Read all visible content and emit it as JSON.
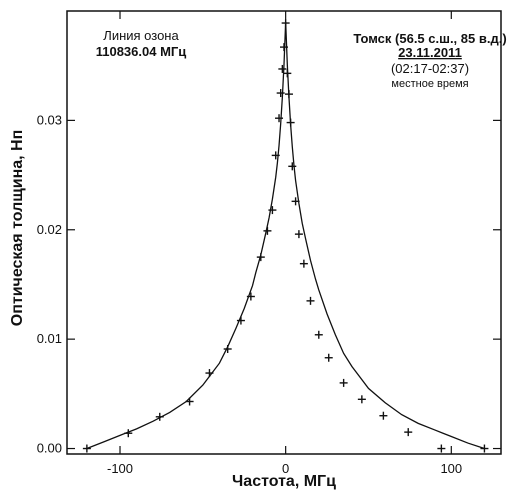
{
  "chart_data": {
    "type": "line",
    "annotations": {
      "left_line1": "Линия озона",
      "left_line2": "110836.04 МГц",
      "right_line1": "Томск (56.5 с.ш., 85 в.д.)",
      "right_line2": "23.11.2011",
      "right_line3": "(02:17-02:37)",
      "right_line4": "местное время"
    },
    "xlabel": "Частота, МГц",
    "ylabel": "Оптическая толщина, Нп",
    "xlim": [
      -132,
      130
    ],
    "ylim": [
      -0.0005,
      0.04
    ],
    "xticks": [
      -100,
      0,
      100
    ],
    "xtick_labels": [
      "-100",
      "0",
      "100"
    ],
    "yticks": [
      0.0,
      0.01,
      0.02,
      0.03
    ],
    "ytick_labels": [
      "0.00",
      "0.01",
      "0.02",
      "0.03"
    ],
    "grid": false,
    "series": [
      {
        "kind": "markers",
        "marker": "plus",
        "x": [
          -120,
          -95,
          -76,
          -58,
          -46,
          -35,
          -27,
          -21,
          -15,
          -11,
          -8,
          -6,
          -4,
          -3,
          -2,
          -1,
          0,
          1,
          2,
          3,
          4,
          6,
          8,
          11,
          15,
          20,
          26,
          35,
          46,
          59,
          74,
          94,
          120
        ],
        "y": [
          0.0,
          0.0014,
          0.0029,
          0.0043,
          0.0069,
          0.0091,
          0.0117,
          0.0139,
          0.0175,
          0.0199,
          0.0218,
          0.0268,
          0.0302,
          0.0325,
          0.0347,
          0.0367,
          0.0389,
          0.0343,
          0.0324,
          0.0298,
          0.0258,
          0.0226,
          0.0196,
          0.0169,
          0.0135,
          0.0104,
          0.0083,
          0.006,
          0.0045,
          0.003,
          0.0015,
          0.0,
          0.0
        ]
      },
      {
        "kind": "line",
        "x": [
          -120,
          -110,
          -100,
          -95,
          -90,
          -80,
          -70,
          -60,
          -50,
          -40,
          -35,
          -30,
          -25,
          -20,
          -18,
          -15,
          -12,
          -10,
          -8,
          -6,
          -5,
          -4,
          -3,
          -2,
          -1,
          0,
          1,
          2,
          3,
          4,
          5,
          6,
          8,
          10,
          12,
          15,
          18,
          20,
          25,
          30,
          35,
          40,
          50,
          60,
          70,
          80,
          90,
          95,
          100,
          110,
          120
        ],
        "y": [
          0.0,
          0.0006,
          0.0012,
          0.0015,
          0.0018,
          0.0025,
          0.0033,
          0.0043,
          0.0058,
          0.0078,
          0.0093,
          0.011,
          0.0128,
          0.0149,
          0.0161,
          0.0177,
          0.0197,
          0.0211,
          0.0228,
          0.0248,
          0.0261,
          0.0277,
          0.0297,
          0.0321,
          0.0351,
          0.039,
          0.0351,
          0.0321,
          0.0296,
          0.0276,
          0.0259,
          0.0245,
          0.0224,
          0.0206,
          0.0192,
          0.0172,
          0.0155,
          0.0145,
          0.0123,
          0.0104,
          0.0087,
          0.0075,
          0.0055,
          0.0042,
          0.0031,
          0.0023,
          0.0017,
          0.0014,
          0.0011,
          0.0005,
          0.0
        ]
      }
    ]
  }
}
